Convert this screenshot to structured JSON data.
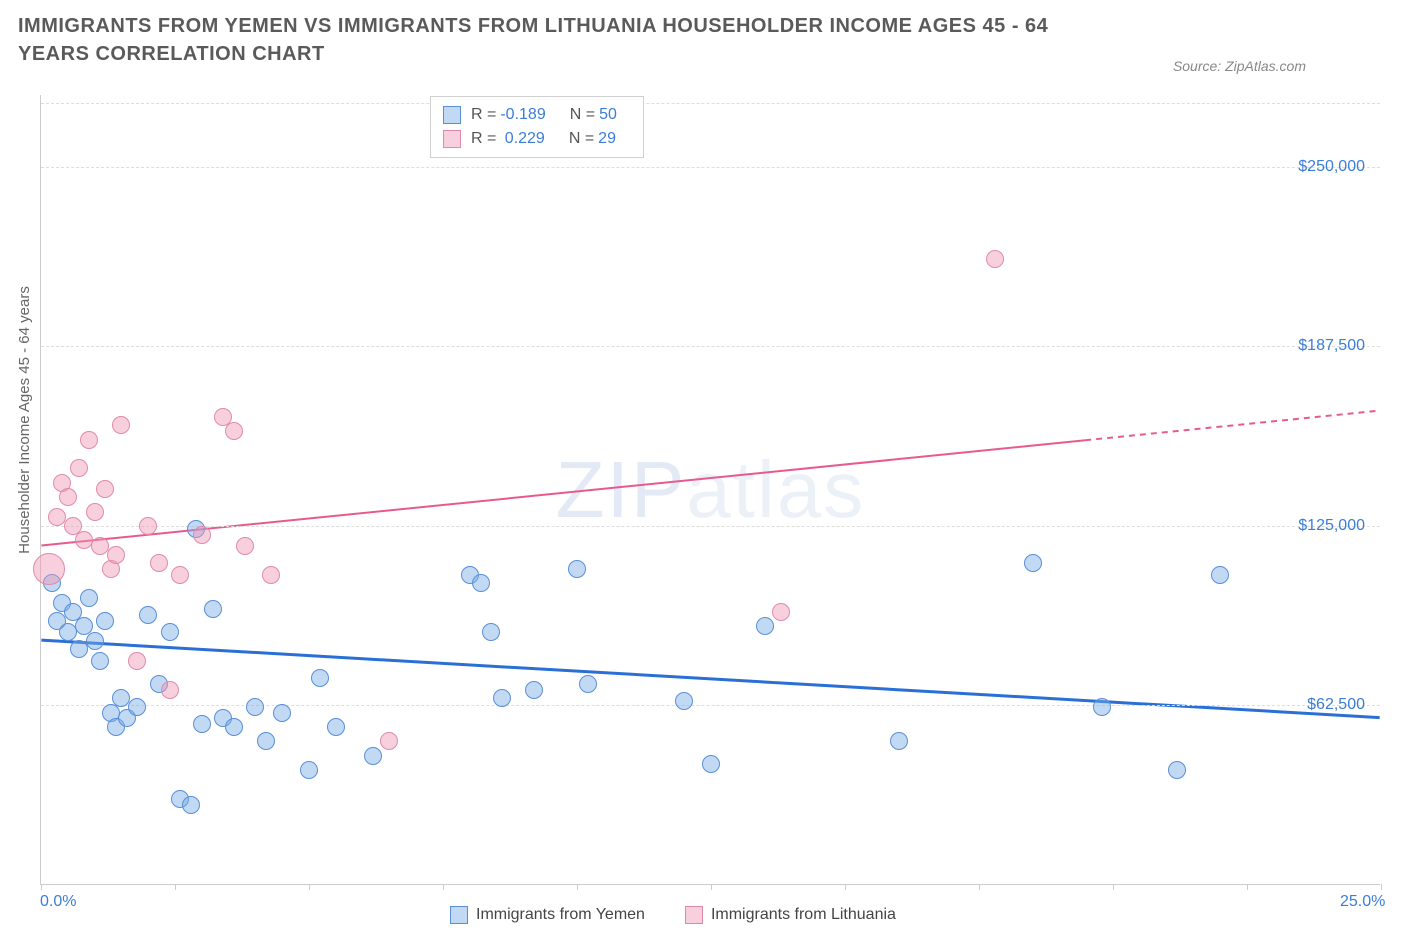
{
  "title": "IMMIGRANTS FROM YEMEN VS IMMIGRANTS FROM LITHUANIA HOUSEHOLDER INCOME AGES 45 - 64 YEARS CORRELATION CHART",
  "source": "Source: ZipAtlas.com",
  "watermark": {
    "bold": "ZIP",
    "thin": "atlas"
  },
  "chart": {
    "type": "scatter",
    "background_color": "#ffffff",
    "grid_color": "#dddddd",
    "axis_color": "#cccccc",
    "yaxis_title": "Householder Income Ages 45 - 64 years",
    "yaxis_title_fontsize": 15,
    "xlim": [
      0,
      25
    ],
    "ylim": [
      0,
      275000
    ],
    "yticks": [
      62500,
      125000,
      187500,
      250000
    ],
    "ytick_labels": [
      "$62,500",
      "$125,000",
      "$187,500",
      "$250,000"
    ],
    "ytick_color": "#3b7dd8",
    "ytick_fontsize": 16,
    "xticks": [
      0,
      2.5,
      5,
      7.5,
      10,
      12.5,
      15,
      17.5,
      20,
      22.5,
      25
    ],
    "xaxis_labels": [
      {
        "x": 0,
        "text": "0.0%"
      },
      {
        "x": 25,
        "text": "25.0%"
      }
    ],
    "marker_radius": 9,
    "marker_radius_large": 16,
    "series": [
      {
        "name": "Immigrants from Yemen",
        "fill_color": "rgba(120,170,230,0.45)",
        "stroke_color": "#5a8fd6",
        "trend": {
          "color": "#2a6fd6",
          "width": 3,
          "y_intercept": 85000,
          "y_at_xmax": 58000,
          "dash_from_x": null
        },
        "R": "-0.189",
        "N": "50",
        "points": [
          [
            0.2,
            105000
          ],
          [
            0.3,
            92000
          ],
          [
            0.4,
            98000
          ],
          [
            0.5,
            88000
          ],
          [
            0.6,
            95000
          ],
          [
            0.7,
            82000
          ],
          [
            0.8,
            90000
          ],
          [
            0.9,
            100000
          ],
          [
            1.0,
            85000
          ],
          [
            1.1,
            78000
          ],
          [
            1.2,
            92000
          ],
          [
            1.3,
            60000
          ],
          [
            1.4,
            55000
          ],
          [
            1.5,
            65000
          ],
          [
            1.6,
            58000
          ],
          [
            1.8,
            62000
          ],
          [
            2.0,
            94000
          ],
          [
            2.2,
            70000
          ],
          [
            2.4,
            88000
          ],
          [
            2.6,
            30000
          ],
          [
            2.8,
            28000
          ],
          [
            2.9,
            124000
          ],
          [
            3.0,
            56000
          ],
          [
            3.2,
            96000
          ],
          [
            3.4,
            58000
          ],
          [
            3.6,
            55000
          ],
          [
            4.0,
            62000
          ],
          [
            4.2,
            50000
          ],
          [
            4.5,
            60000
          ],
          [
            5.0,
            40000
          ],
          [
            5.2,
            72000
          ],
          [
            5.5,
            55000
          ],
          [
            6.2,
            45000
          ],
          [
            8.0,
            108000
          ],
          [
            8.2,
            105000
          ],
          [
            8.4,
            88000
          ],
          [
            8.6,
            65000
          ],
          [
            9.2,
            68000
          ],
          [
            10.0,
            110000
          ],
          [
            10.2,
            70000
          ],
          [
            12.0,
            64000
          ],
          [
            12.5,
            42000
          ],
          [
            13.5,
            90000
          ],
          [
            16.0,
            50000
          ],
          [
            18.5,
            112000
          ],
          [
            19.8,
            62000
          ],
          [
            21.2,
            40000
          ],
          [
            22.0,
            108000
          ]
        ]
      },
      {
        "name": "Immigrants from Lithuania",
        "fill_color": "rgba(240,150,180,0.45)",
        "stroke_color": "#e08aab",
        "trend": {
          "color": "#e85a8f",
          "width": 2,
          "y_intercept": 118000,
          "y_at_xmax": 165000,
          "dash_from_x": 19.5
        },
        "R": "0.229",
        "N": "29",
        "points": [
          [
            0.15,
            110000,
            "large"
          ],
          [
            0.3,
            128000
          ],
          [
            0.4,
            140000
          ],
          [
            0.5,
            135000
          ],
          [
            0.6,
            125000
          ],
          [
            0.7,
            145000
          ],
          [
            0.8,
            120000
          ],
          [
            0.9,
            155000
          ],
          [
            1.0,
            130000
          ],
          [
            1.1,
            118000
          ],
          [
            1.2,
            138000
          ],
          [
            1.3,
            110000
          ],
          [
            1.4,
            115000
          ],
          [
            1.5,
            160000
          ],
          [
            1.8,
            78000
          ],
          [
            2.0,
            125000
          ],
          [
            2.2,
            112000
          ],
          [
            2.4,
            68000
          ],
          [
            2.6,
            108000
          ],
          [
            3.0,
            122000
          ],
          [
            3.4,
            163000
          ],
          [
            3.6,
            158000
          ],
          [
            3.8,
            118000
          ],
          [
            4.3,
            108000
          ],
          [
            6.5,
            50000
          ],
          [
            13.8,
            95000
          ],
          [
            17.8,
            218000
          ]
        ]
      }
    ]
  },
  "legend_top": {
    "rows": [
      {
        "swatch_fill": "rgba(120,170,230,0.45)",
        "swatch_stroke": "#5a8fd6",
        "R_label": "R =",
        "R_value": "-0.189",
        "N_label": "N =",
        "N_value": "50"
      },
      {
        "swatch_fill": "rgba(240,150,180,0.45)",
        "swatch_stroke": "#e08aab",
        "R_label": "R =",
        "R_value": " 0.229",
        "N_label": "N =",
        "N_value": "29"
      }
    ]
  },
  "legend_bottom": {
    "items": [
      {
        "swatch_fill": "rgba(120,170,230,0.45)",
        "swatch_stroke": "#5a8fd6",
        "label": "Immigrants from Yemen"
      },
      {
        "swatch_fill": "rgba(240,150,180,0.45)",
        "swatch_stroke": "#e08aab",
        "label": "Immigrants from Lithuania"
      }
    ]
  }
}
